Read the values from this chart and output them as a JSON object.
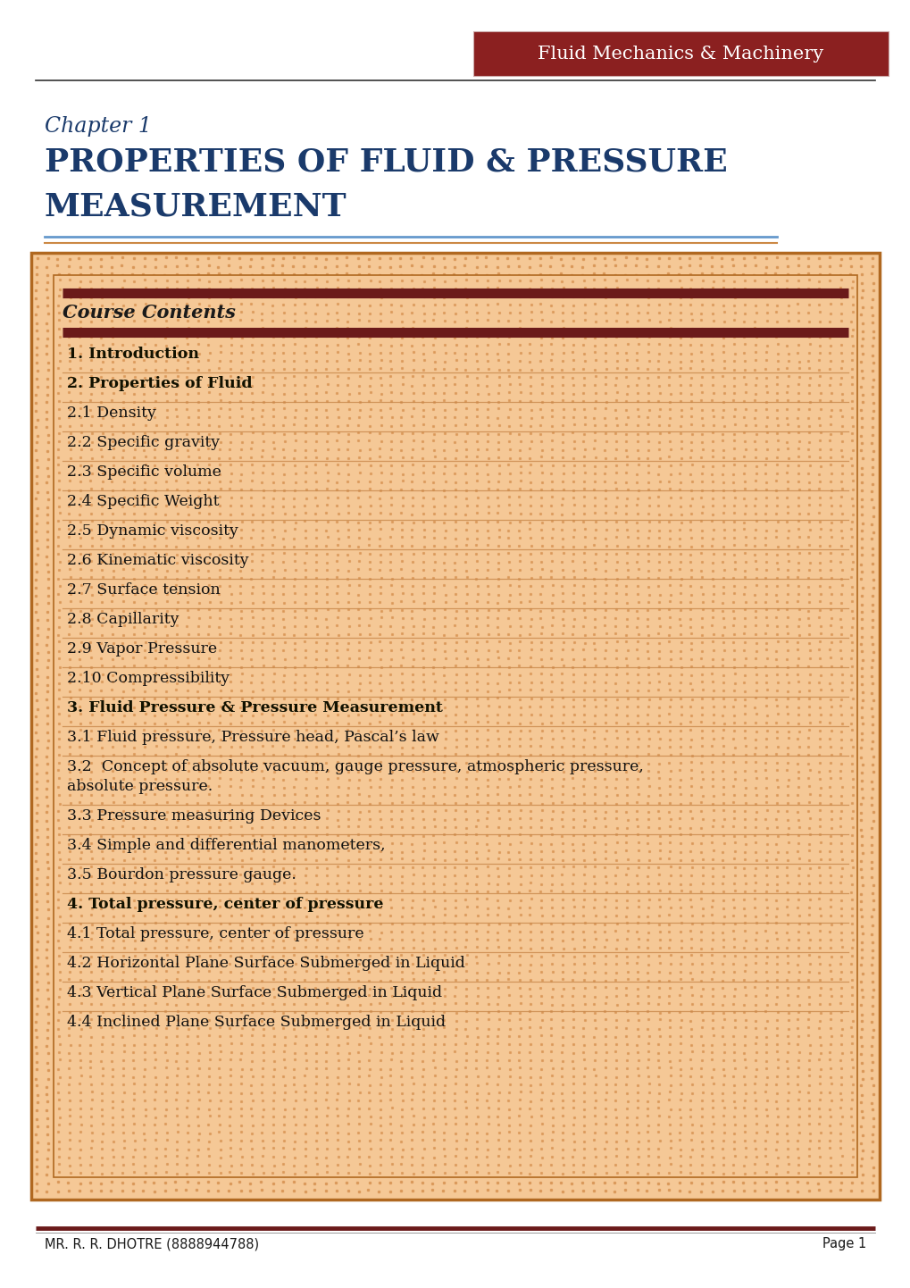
{
  "page_bg": "#ffffff",
  "header_bg": "#8B2020",
  "header_text": "Fluid Mechanics & Machinery",
  "header_text_color": "#ffffff",
  "chapter_label": "Chapter 1",
  "chapter_label_color": "#1a3a6b",
  "chapter_title_line1": "PROPERTIES OF FLUID & PRESSURE",
  "chapter_title_line2": "MEASUREMENT",
  "chapter_title_color": "#1a3a6b",
  "separator_color_blue": "#6699cc",
  "separator_color_orange": "#cc8844",
  "box_bg": "#f5c896",
  "box_border": "#b06820",
  "box_inner_bg": "#f0ba80",
  "box_inner_border": "#6b1a1a",
  "course_contents_label": "Course Contents",
  "course_contents_color": "#1a1a1a",
  "item_bold_color": "#1a1a00",
  "item_normal_color": "#1a1a1a",
  "sep_line_color": "#c8884a",
  "items": [
    {
      "text": "1. Introduction",
      "bold": true
    },
    {
      "text": "2. Properties of Fluid",
      "bold": true
    },
    {
      "text": "2.1 Density",
      "bold": false
    },
    {
      "text": "2.2 Specific gravity",
      "bold": false
    },
    {
      "text": "2.3 Specific volume",
      "bold": false
    },
    {
      "text": "2.4 Specific Weight",
      "bold": false
    },
    {
      "text": "2.5 Dynamic viscosity",
      "bold": false
    },
    {
      "text": "2.6 Kinematic viscosity",
      "bold": false
    },
    {
      "text": "2.7 Surface tension",
      "bold": false
    },
    {
      "text": "2.8 Capillarity",
      "bold": false
    },
    {
      "text": "2.9 Vapor Pressure",
      "bold": false
    },
    {
      "text": "2.10 Compressibility",
      "bold": false
    },
    {
      "text": "3. Fluid Pressure & Pressure Measurement",
      "bold": true
    },
    {
      "text": "3.1 Fluid pressure, Pressure head, Pascal’s law",
      "bold": false
    },
    {
      "text": "3.2  Concept of absolute vacuum, gauge pressure, atmospheric pressure,\nabsolute pressure.",
      "bold": false
    },
    {
      "text": "3.3 Pressure measuring Devices",
      "bold": false
    },
    {
      "text": "3.4 Simple and differential manometers,",
      "bold": false
    },
    {
      "text": "3.5 Bourdon pressure gauge.",
      "bold": false
    },
    {
      "text": "4. Total pressure, center of pressure",
      "bold": true
    },
    {
      "text": "4.1 Total pressure, center of pressure",
      "bold": false
    },
    {
      "text": "4.2 Horizontal Plane Surface Submerged in Liquid",
      "bold": false
    },
    {
      "text": "4.3 Vertical Plane Surface Submerged in Liquid",
      "bold": false
    },
    {
      "text": "4.4 Inclined Plane Surface Submerged in Liquid",
      "bold": false
    }
  ],
  "footer_left": "MR. R. R. DHOTRE (8888944788)",
  "footer_right": "Page 1",
  "footer_color": "#1a1a1a",
  "footer_line_color": "#6b1a1a"
}
